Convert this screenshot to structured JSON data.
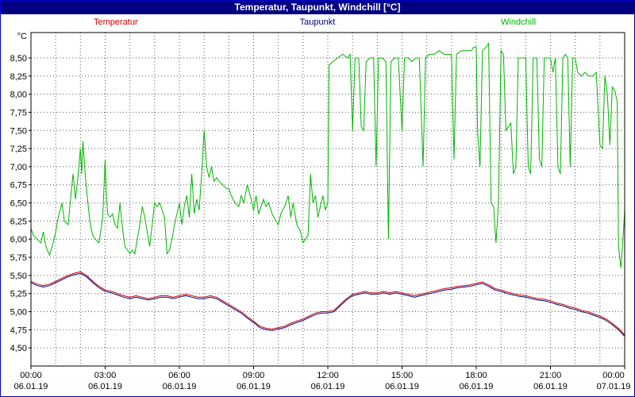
{
  "window": {
    "title": "Temperatur, Taupunkt, Windchill [°C]"
  },
  "legend": [
    {
      "label": "Temperatur",
      "color": "#cc0000"
    },
    {
      "label": "Taupunkt",
      "color": "#000080"
    },
    {
      "label": "Windchill",
      "color": "#00b400"
    }
  ],
  "colors": {
    "title_bar_bg": "#000080",
    "frame": "#0000c8",
    "plot_border": "#000000",
    "grid": "#555555",
    "background": "#ffffff"
  },
  "chart_data": {
    "type": "line",
    "title": "Temperatur, Taupunkt, Windchill [°C]",
    "xlabel": "",
    "ylabel": "°C",
    "unit_label": "°C",
    "grid": true,
    "xlim": [
      0,
      24
    ],
    "ylim": [
      4.25,
      8.85
    ],
    "x_minor_step_hours": 1,
    "x_major_ticks": [
      {
        "hour": 0,
        "time": "00:00",
        "date": "06.01.19"
      },
      {
        "hour": 3,
        "time": "03:00",
        "date": "06.01.19"
      },
      {
        "hour": 6,
        "time": "06:00",
        "date": "06.01.19"
      },
      {
        "hour": 9,
        "time": "09:00",
        "date": "06.01.19"
      },
      {
        "hour": 12,
        "time": "12:00",
        "date": "06.01.19"
      },
      {
        "hour": 15,
        "time": "15:00",
        "date": "06.01.19"
      },
      {
        "hour": 18,
        "time": "18:00",
        "date": "06.01.19"
      },
      {
        "hour": 21,
        "time": "21:00",
        "date": "06.01.19"
      },
      {
        "hour": 24,
        "time": "00:00",
        "date": "07.01.19"
      }
    ],
    "yticks": [
      {
        "value": 8.5,
        "label": "8,50"
      },
      {
        "value": 8.25,
        "label": "8,25"
      },
      {
        "value": 8.0,
        "label": "8,00"
      },
      {
        "value": 7.75,
        "label": "7,75"
      },
      {
        "value": 7.5,
        "label": "7,50"
      },
      {
        "value": 7.25,
        "label": "7,25"
      },
      {
        "value": 7.0,
        "label": "7,00"
      },
      {
        "value": 6.75,
        "label": "6,75"
      },
      {
        "value": 6.5,
        "label": "6,50"
      },
      {
        "value": 6.25,
        "label": "6,25"
      },
      {
        "value": 6.0,
        "label": "6,00"
      },
      {
        "value": 5.75,
        "label": "5,75"
      },
      {
        "value": 5.5,
        "label": "5,50"
      },
      {
        "value": 5.25,
        "label": "5,25"
      },
      {
        "value": 5.0,
        "label": "5,00"
      },
      {
        "value": 4.75,
        "label": "4,75"
      },
      {
        "value": 4.5,
        "label": "4,50"
      }
    ],
    "series": [
      {
        "name": "Temperatur",
        "color": "#cc0000",
        "x_start": 0,
        "x_step": 0.25,
        "values": [
          5.42,
          5.38,
          5.36,
          5.38,
          5.42,
          5.46,
          5.5,
          5.53,
          5.55,
          5.5,
          5.42,
          5.35,
          5.3,
          5.28,
          5.25,
          5.22,
          5.2,
          5.22,
          5.2,
          5.18,
          5.2,
          5.22,
          5.22,
          5.2,
          5.22,
          5.24,
          5.22,
          5.2,
          5.2,
          5.22,
          5.2,
          5.15,
          5.1,
          5.05,
          5.0,
          4.93,
          4.87,
          4.8,
          4.77,
          4.76,
          4.78,
          4.8,
          4.84,
          4.87,
          4.9,
          4.94,
          4.98,
          5.0,
          5.0,
          5.02,
          5.1,
          5.18,
          5.24,
          5.26,
          5.28,
          5.26,
          5.26,
          5.28,
          5.26,
          5.28,
          5.26,
          5.24,
          5.22,
          5.24,
          5.26,
          5.28,
          5.3,
          5.32,
          5.33,
          5.35,
          5.36,
          5.37,
          5.39,
          5.41,
          5.37,
          5.32,
          5.3,
          5.27,
          5.25,
          5.23,
          5.22,
          5.2,
          5.18,
          5.17,
          5.15,
          5.12,
          5.1,
          5.07,
          5.05,
          5.02,
          5.0,
          4.97,
          4.94,
          4.9,
          4.84,
          4.77,
          4.68
        ]
      },
      {
        "name": "Taupunkt",
        "color": "#000080",
        "x_start": 0,
        "x_step": 0.25,
        "values": [
          5.4,
          5.36,
          5.34,
          5.36,
          5.4,
          5.44,
          5.48,
          5.51,
          5.53,
          5.48,
          5.4,
          5.33,
          5.28,
          5.26,
          5.23,
          5.2,
          5.18,
          5.2,
          5.18,
          5.16,
          5.18,
          5.2,
          5.2,
          5.18,
          5.2,
          5.22,
          5.2,
          5.18,
          5.18,
          5.2,
          5.18,
          5.13,
          5.08,
          5.03,
          4.98,
          4.91,
          4.85,
          4.78,
          4.75,
          4.74,
          4.76,
          4.78,
          4.82,
          4.85,
          4.88,
          4.92,
          4.96,
          4.98,
          4.98,
          5.0,
          5.08,
          5.16,
          5.22,
          5.24,
          5.26,
          5.24,
          5.24,
          5.26,
          5.24,
          5.26,
          5.24,
          5.22,
          5.2,
          5.22,
          5.24,
          5.26,
          5.28,
          5.3,
          5.31,
          5.33,
          5.34,
          5.35,
          5.37,
          5.39,
          5.35,
          5.3,
          5.28,
          5.25,
          5.23,
          5.21,
          5.2,
          5.18,
          5.16,
          5.15,
          5.13,
          5.1,
          5.08,
          5.05,
          5.03,
          5.0,
          4.98,
          4.95,
          4.92,
          4.88,
          4.82,
          4.75,
          4.66
        ]
      },
      {
        "name": "Windchill",
        "color": "#00b400",
        "points": [
          [
            0,
            6.15
          ],
          [
            0.1,
            6.05
          ],
          [
            0.25,
            6.0
          ],
          [
            0.4,
            5.95
          ],
          [
            0.5,
            6.1
          ],
          [
            0.6,
            5.9
          ],
          [
            0.75,
            5.78
          ],
          [
            0.9,
            5.95
          ],
          [
            1,
            6.1
          ],
          [
            1.1,
            6.3
          ],
          [
            1.25,
            6.5
          ],
          [
            1.35,
            6.25
          ],
          [
            1.5,
            6.2
          ],
          [
            1.6,
            6.55
          ],
          [
            1.7,
            6.9
          ],
          [
            1.8,
            6.55
          ],
          [
            1.9,
            6.85
          ],
          [
            2,
            7.25
          ],
          [
            2.05,
            6.9
          ],
          [
            2.1,
            7.35
          ],
          [
            2.2,
            6.85
          ],
          [
            2.3,
            6.5
          ],
          [
            2.4,
            6.2
          ],
          [
            2.5,
            6.05
          ],
          [
            2.6,
            6.0
          ],
          [
            2.75,
            5.95
          ],
          [
            2.9,
            6.3
          ],
          [
            3,
            7.1
          ],
          [
            3.05,
            6.6
          ],
          [
            3.1,
            6.35
          ],
          [
            3.2,
            6.3
          ],
          [
            3.3,
            6.35
          ],
          [
            3.4,
            6.2
          ],
          [
            3.5,
            6.15
          ],
          [
            3.6,
            6.5
          ],
          [
            3.7,
            6.15
          ],
          [
            3.8,
            5.9
          ],
          [
            3.9,
            5.85
          ],
          [
            4,
            5.8
          ],
          [
            4.1,
            5.85
          ],
          [
            4.2,
            5.8
          ],
          [
            4.3,
            6.0
          ],
          [
            4.4,
            6.2
          ],
          [
            4.5,
            6.45
          ],
          [
            4.6,
            6.3
          ],
          [
            4.7,
            6.1
          ],
          [
            4.8,
            5.9
          ],
          [
            4.9,
            6.2
          ],
          [
            5,
            6.5
          ],
          [
            5.1,
            6.45
          ],
          [
            5.2,
            6.5
          ],
          [
            5.3,
            6.4
          ],
          [
            5.4,
            6.3
          ],
          [
            5.5,
            5.8
          ],
          [
            5.6,
            5.85
          ],
          [
            5.7,
            6.0
          ],
          [
            5.8,
            6.2
          ],
          [
            5.9,
            6.35
          ],
          [
            6,
            6.5
          ],
          [
            6.1,
            6.2
          ],
          [
            6.2,
            6.45
          ],
          [
            6.3,
            6.6
          ],
          [
            6.4,
            6.3
          ],
          [
            6.5,
            6.9
          ],
          [
            6.6,
            6.35
          ],
          [
            6.7,
            6.55
          ],
          [
            6.8,
            6.4
          ],
          [
            6.9,
            6.9
          ],
          [
            7,
            7.5
          ],
          [
            7.1,
            7.0
          ],
          [
            7.2,
            6.85
          ],
          [
            7.3,
            7.0
          ],
          [
            7.4,
            6.8
          ],
          [
            7.5,
            6.85
          ],
          [
            7.6,
            6.8
          ],
          [
            7.75,
            6.75
          ],
          [
            7.9,
            6.7
          ],
          [
            8,
            6.7
          ],
          [
            8.1,
            6.6
          ],
          [
            8.25,
            6.5
          ],
          [
            8.4,
            6.45
          ],
          [
            8.5,
            6.6
          ],
          [
            8.6,
            6.5
          ],
          [
            8.75,
            6.75
          ],
          [
            8.9,
            6.55
          ],
          [
            9,
            6.4
          ],
          [
            9.1,
            6.6
          ],
          [
            9.2,
            6.35
          ],
          [
            9.3,
            6.45
          ],
          [
            9.4,
            6.55
          ],
          [
            9.5,
            6.45
          ],
          [
            9.6,
            6.5
          ],
          [
            9.75,
            6.35
          ],
          [
            9.9,
            6.25
          ],
          [
            10,
            6.2
          ],
          [
            10.1,
            6.35
          ],
          [
            10.25,
            6.45
          ],
          [
            10.4,
            6.6
          ],
          [
            10.5,
            6.3
          ],
          [
            10.6,
            6.5
          ],
          [
            10.75,
            6.2
          ],
          [
            10.9,
            6.1
          ],
          [
            11,
            5.95
          ],
          [
            11.1,
            6.0
          ],
          [
            11.2,
            6.05
          ],
          [
            11.3,
            6.9
          ],
          [
            11.4,
            6.5
          ],
          [
            11.5,
            6.6
          ],
          [
            11.6,
            6.3
          ],
          [
            11.7,
            6.45
          ],
          [
            11.8,
            6.6
          ],
          [
            11.9,
            6.4
          ],
          [
            12,
            6.5
          ],
          [
            12.05,
            8.4
          ],
          [
            12.2,
            8.45
          ],
          [
            12.4,
            8.5
          ],
          [
            12.6,
            8.55
          ],
          [
            12.8,
            8.5
          ],
          [
            12.9,
            8.55
          ],
          [
            13,
            7.5
          ],
          [
            13.1,
            8.5
          ],
          [
            13.25,
            8.5
          ],
          [
            13.35,
            7.55
          ],
          [
            13.45,
            7.5
          ],
          [
            13.55,
            8.45
          ],
          [
            13.7,
            8.5
          ],
          [
            13.85,
            8.5
          ],
          [
            13.95,
            7.0
          ],
          [
            14.05,
            8.5
          ],
          [
            14.2,
            8.5
          ],
          [
            14.35,
            8.45
          ],
          [
            14.45,
            6.0
          ],
          [
            14.55,
            8.45
          ],
          [
            14.7,
            8.5
          ],
          [
            14.85,
            8.5
          ],
          [
            15,
            7.5
          ],
          [
            15.1,
            8.5
          ],
          [
            15.25,
            8.5
          ],
          [
            15.4,
            8.45
          ],
          [
            15.55,
            8.5
          ],
          [
            15.7,
            8.5
          ],
          [
            15.85,
            7.0
          ],
          [
            15.95,
            8.5
          ],
          [
            16.1,
            8.55
          ],
          [
            16.3,
            8.55
          ],
          [
            16.5,
            8.6
          ],
          [
            16.7,
            8.55
          ],
          [
            16.9,
            8.55
          ],
          [
            17,
            8.55
          ],
          [
            17.1,
            7.1
          ],
          [
            17.2,
            8.55
          ],
          [
            17.4,
            8.6
          ],
          [
            17.6,
            8.6
          ],
          [
            17.8,
            8.6
          ],
          [
            17.9,
            8.65
          ],
          [
            18,
            8.65
          ],
          [
            18.05,
            7.5
          ],
          [
            18.15,
            7.0
          ],
          [
            18.25,
            8.6
          ],
          [
            18.4,
            8.65
          ],
          [
            18.5,
            8.7
          ],
          [
            18.6,
            6.5
          ],
          [
            18.7,
            6.45
          ],
          [
            18.8,
            5.95
          ],
          [
            18.9,
            6.5
          ],
          [
            19,
            8.6
          ],
          [
            19.1,
            8.55
          ],
          [
            19.2,
            7.5
          ],
          [
            19.3,
            7.55
          ],
          [
            19.4,
            7.6
          ],
          [
            19.5,
            6.9
          ],
          [
            19.6,
            7.0
          ],
          [
            19.7,
            8.5
          ],
          [
            19.85,
            8.5
          ],
          [
            20,
            8.5
          ],
          [
            20.1,
            7.0
          ],
          [
            20.2,
            6.9
          ],
          [
            20.3,
            8.5
          ],
          [
            20.45,
            8.5
          ],
          [
            20.55,
            7.1
          ],
          [
            20.65,
            7.0
          ],
          [
            20.75,
            8.5
          ],
          [
            20.9,
            8.5
          ],
          [
            21,
            8.5
          ],
          [
            21.1,
            8.3
          ],
          [
            21.2,
            8.5
          ],
          [
            21.3,
            7.0
          ],
          [
            21.4,
            6.9
          ],
          [
            21.5,
            8.5
          ],
          [
            21.6,
            8.55
          ],
          [
            21.7,
            8.5
          ],
          [
            21.8,
            7.0
          ],
          [
            21.9,
            8.5
          ],
          [
            22,
            8.5
          ],
          [
            22.1,
            8.3
          ],
          [
            22.25,
            8.25
          ],
          [
            22.4,
            8.3
          ],
          [
            22.55,
            8.25
          ],
          [
            22.7,
            8.25
          ],
          [
            22.85,
            8.3
          ],
          [
            23,
            7.3
          ],
          [
            23.1,
            7.25
          ],
          [
            23.2,
            8.25
          ],
          [
            23.3,
            8.0
          ],
          [
            23.4,
            7.3
          ],
          [
            23.5,
            8.1
          ],
          [
            23.6,
            8.05
          ],
          [
            23.7,
            7.9
          ],
          [
            23.75,
            5.9
          ],
          [
            23.85,
            5.6
          ],
          [
            23.95,
            6.1
          ],
          [
            24,
            6.4
          ]
        ]
      }
    ]
  }
}
